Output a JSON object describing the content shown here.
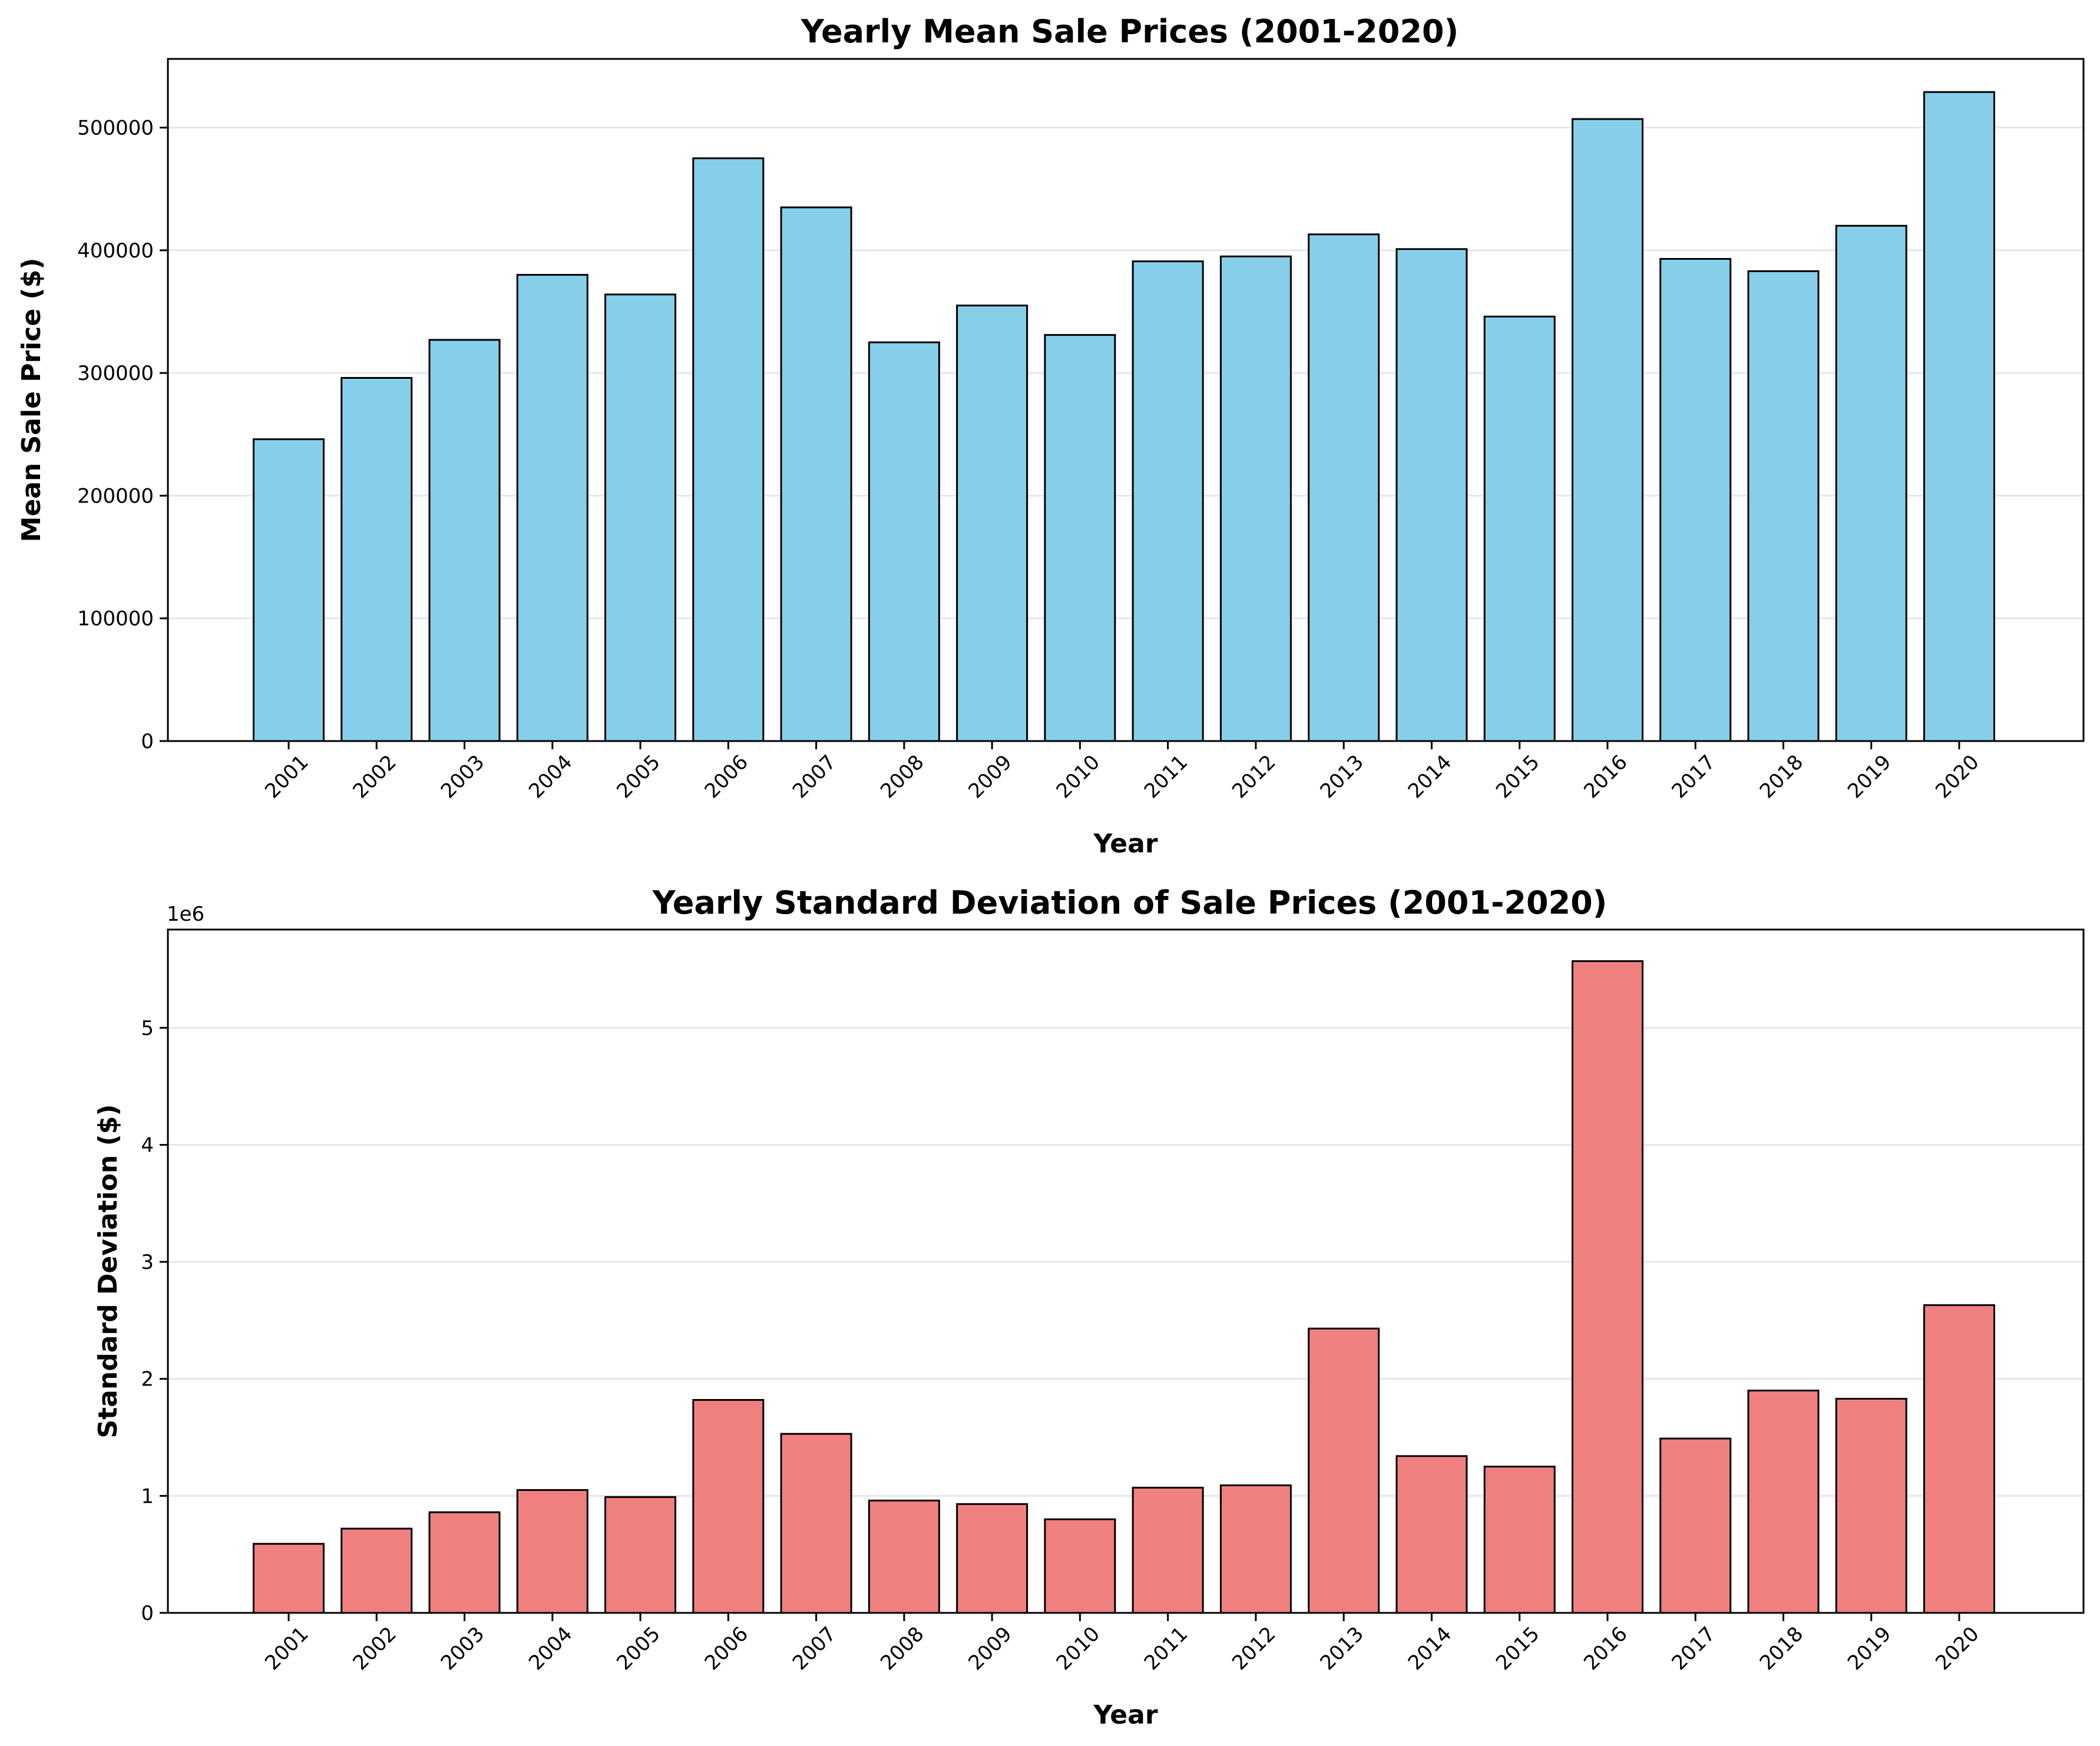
{
  "chart_data": [
    {
      "type": "bar",
      "title": "Yearly Mean Sale Prices (2001-2020)",
      "xlabel": "Year",
      "ylabel": "Mean Sale Price ($)",
      "ylim": [
        0,
        556000
      ],
      "yticks": [
        0,
        100000,
        200000,
        300000,
        400000,
        500000
      ],
      "ytick_labels": [
        "0",
        "100000",
        "200000",
        "300000",
        "400000",
        "500000"
      ],
      "y_offset_label": "",
      "grid": "y",
      "color": "#87CEEB",
      "edgecolor": "#000000",
      "categories": [
        "2001",
        "2002",
        "2003",
        "2004",
        "2005",
        "2006",
        "2007",
        "2008",
        "2009",
        "2010",
        "2011",
        "2012",
        "2013",
        "2014",
        "2015",
        "2016",
        "2017",
        "2018",
        "2019",
        "2020"
      ],
      "values": [
        246000,
        296000,
        327000,
        380000,
        364000,
        475000,
        435000,
        325000,
        355000,
        331000,
        391000,
        395000,
        413000,
        401000,
        346000,
        507000,
        393000,
        383000,
        420000,
        529000
      ]
    },
    {
      "type": "bar",
      "title": "Yearly Standard Deviation of Sale Prices (2001-2020)",
      "xlabel": "Year",
      "ylabel": "Standard Deviation ($)",
      "ylim": [
        0,
        5840000
      ],
      "yticks": [
        0,
        1000000,
        2000000,
        3000000,
        4000000,
        5000000
      ],
      "ytick_labels": [
        "0",
        "1",
        "2",
        "3",
        "4",
        "5"
      ],
      "y_offset_label": "1e6",
      "grid": "y",
      "color": "#F08080",
      "edgecolor": "#000000",
      "categories": [
        "2001",
        "2002",
        "2003",
        "2004",
        "2005",
        "2006",
        "2007",
        "2008",
        "2009",
        "2010",
        "2011",
        "2012",
        "2013",
        "2014",
        "2015",
        "2016",
        "2017",
        "2018",
        "2019",
        "2020"
      ],
      "values": [
        590000,
        720000,
        860000,
        1050000,
        990000,
        1820000,
        1530000,
        960000,
        930000,
        800000,
        1070000,
        1090000,
        2430000,
        1340000,
        1250000,
        5570000,
        1490000,
        1900000,
        1830000,
        2630000
      ]
    }
  ]
}
